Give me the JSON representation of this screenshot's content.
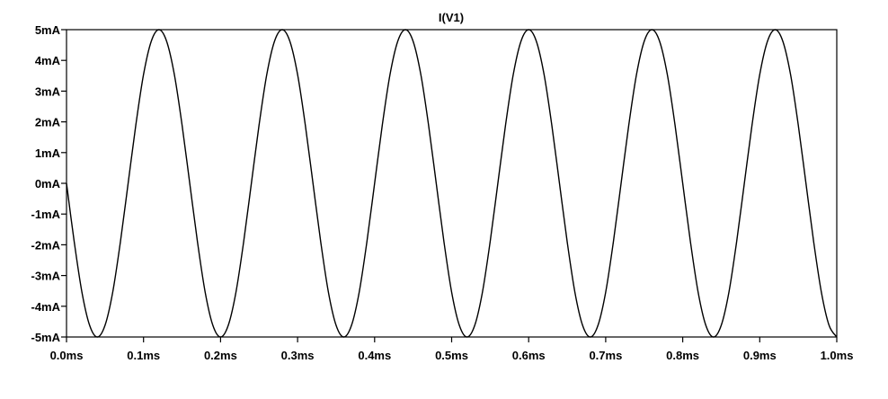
{
  "chart_data": {
    "type": "line",
    "title": "I(V1)",
    "xlabel": "",
    "ylabel": "",
    "xlim": [
      0.0,
      1.0
    ],
    "ylim": [
      -5,
      5
    ],
    "grid": false,
    "x_tick_values": [
      0.0,
      0.1,
      0.2,
      0.3,
      0.4,
      0.5,
      0.6,
      0.7,
      0.8,
      0.9,
      1.0
    ],
    "x_tick_labels": [
      "0.0ms",
      "0.1ms",
      "0.2ms",
      "0.3ms",
      "0.4ms",
      "0.5ms",
      "0.6ms",
      "0.7ms",
      "0.8ms",
      "0.9ms",
      "1.0ms"
    ],
    "y_tick_values": [
      5,
      4,
      3,
      2,
      1,
      0,
      -1,
      -2,
      -3,
      -4,
      -5
    ],
    "y_tick_labels": [
      "5mA",
      "4mA",
      "3mA",
      "2mA",
      "1mA",
      "0mA",
      "-1mA",
      "-2mA",
      "-3mA",
      "-4mA",
      "-5mA"
    ],
    "series": [
      {
        "name": "I(V1)",
        "color": "#000000",
        "x_unit": "ms",
        "y_unit": "mA",
        "x": [
          0.0,
          0.01,
          0.02,
          0.03,
          0.04,
          0.05,
          0.06,
          0.07,
          0.08,
          0.09,
          0.1,
          0.11,
          0.12,
          0.13,
          0.14,
          0.15,
          0.16,
          0.17,
          0.18,
          0.19,
          0.2,
          0.21,
          0.22,
          0.23,
          0.24,
          0.25,
          0.26,
          0.27,
          0.28,
          0.29,
          0.3,
          0.31,
          0.32,
          0.33,
          0.34,
          0.35,
          0.36,
          0.37,
          0.38,
          0.39,
          0.4,
          0.41,
          0.42,
          0.43,
          0.44,
          0.45,
          0.46,
          0.47,
          0.48,
          0.49,
          0.5,
          0.51,
          0.52,
          0.53,
          0.54,
          0.55,
          0.56,
          0.57,
          0.58,
          0.59,
          0.6,
          0.61,
          0.62,
          0.63,
          0.64,
          0.65,
          0.66,
          0.67,
          0.68,
          0.69,
          0.7,
          0.71,
          0.72,
          0.73,
          0.74,
          0.75,
          0.76,
          0.77,
          0.78,
          0.79,
          0.8,
          0.81,
          0.82,
          0.83,
          0.84,
          0.85,
          0.86,
          0.87,
          0.88,
          0.89,
          0.9,
          0.91,
          0.92,
          0.93,
          0.94,
          0.95,
          0.96,
          0.97,
          0.98,
          0.99,
          1.0
        ],
        "y": [
          0.0,
          -1.9,
          -3.54,
          -4.62,
          -5.0,
          -4.62,
          -3.54,
          -1.9,
          0.0,
          1.9,
          3.54,
          4.62,
          5.0,
          4.62,
          3.54,
          1.9,
          0.0,
          -1.9,
          -3.54,
          -4.62,
          -5.0,
          -4.62,
          -3.54,
          -1.9,
          0.0,
          1.9,
          3.54,
          4.62,
          5.0,
          4.62,
          3.54,
          1.9,
          0.0,
          -1.9,
          -3.54,
          -4.62,
          -5.0,
          -4.62,
          -3.54,
          -1.9,
          0.0,
          1.9,
          3.54,
          4.62,
          5.0,
          4.62,
          3.54,
          1.9,
          0.0,
          -1.9,
          -3.54,
          -4.62,
          -5.0,
          -4.62,
          -3.54,
          -1.9,
          0.0,
          1.9,
          3.54,
          4.62,
          5.0,
          4.62,
          3.54,
          1.9,
          0.0,
          -1.9,
          -3.54,
          -4.62,
          -5.0,
          -4.62,
          -3.54,
          -1.9,
          0.0,
          1.9,
          3.54,
          4.62,
          5.0,
          4.62,
          3.54,
          1.9,
          0.0,
          -1.9,
          -3.54,
          -4.62,
          -5.0,
          -4.62,
          -3.54,
          -1.9,
          0.0,
          1.9,
          3.54,
          4.62,
          5.0,
          4.62,
          3.54,
          1.9,
          0.0,
          -1.9,
          -3.54,
          -4.62,
          -5.0
        ]
      }
    ]
  }
}
